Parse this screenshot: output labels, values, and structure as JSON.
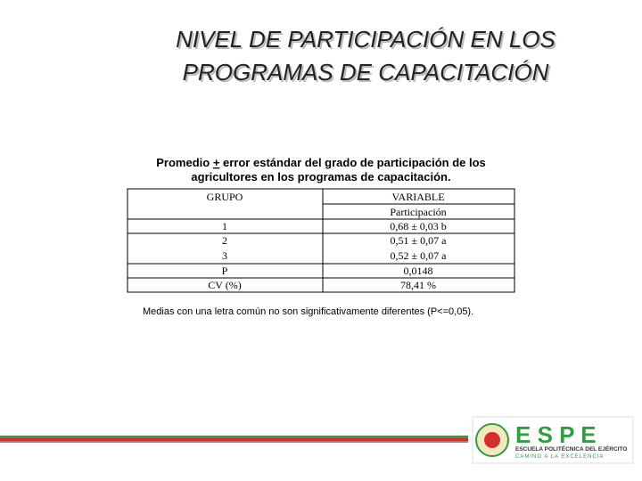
{
  "title": [
    "NIVEL DE PARTICIPACIÓN EN LOS",
    "PROGRAMAS DE CAPACITACIÓN"
  ],
  "caption": {
    "line1": [
      "Promedio ",
      "+",
      " error estándar del grado de participación de los"
    ],
    "line2": "agricultores en los programas de capacitación."
  },
  "table": {
    "header": {
      "group": "GRUPO",
      "variable": "VARIABLE",
      "sub": "Participación"
    },
    "rows": [
      [
        "1",
        "0,68 ± 0,03 b"
      ],
      [
        "2",
        "0,51 ± 0,07 a"
      ],
      [
        "3",
        "0,52 ± 0,07 a"
      ],
      [
        "P",
        "0,0148"
      ],
      [
        "CV (%)",
        "78,41 %"
      ]
    ]
  },
  "footnote": "Medias con una letra común no son significativamente diferentes (P<=0,05).",
  "logo": {
    "name": "E S P E",
    "school": "ESCUELA POLITÉCNICA DEL EJÉRCITO",
    "motto": "CAMINO A LA EXCELENCIA"
  }
}
